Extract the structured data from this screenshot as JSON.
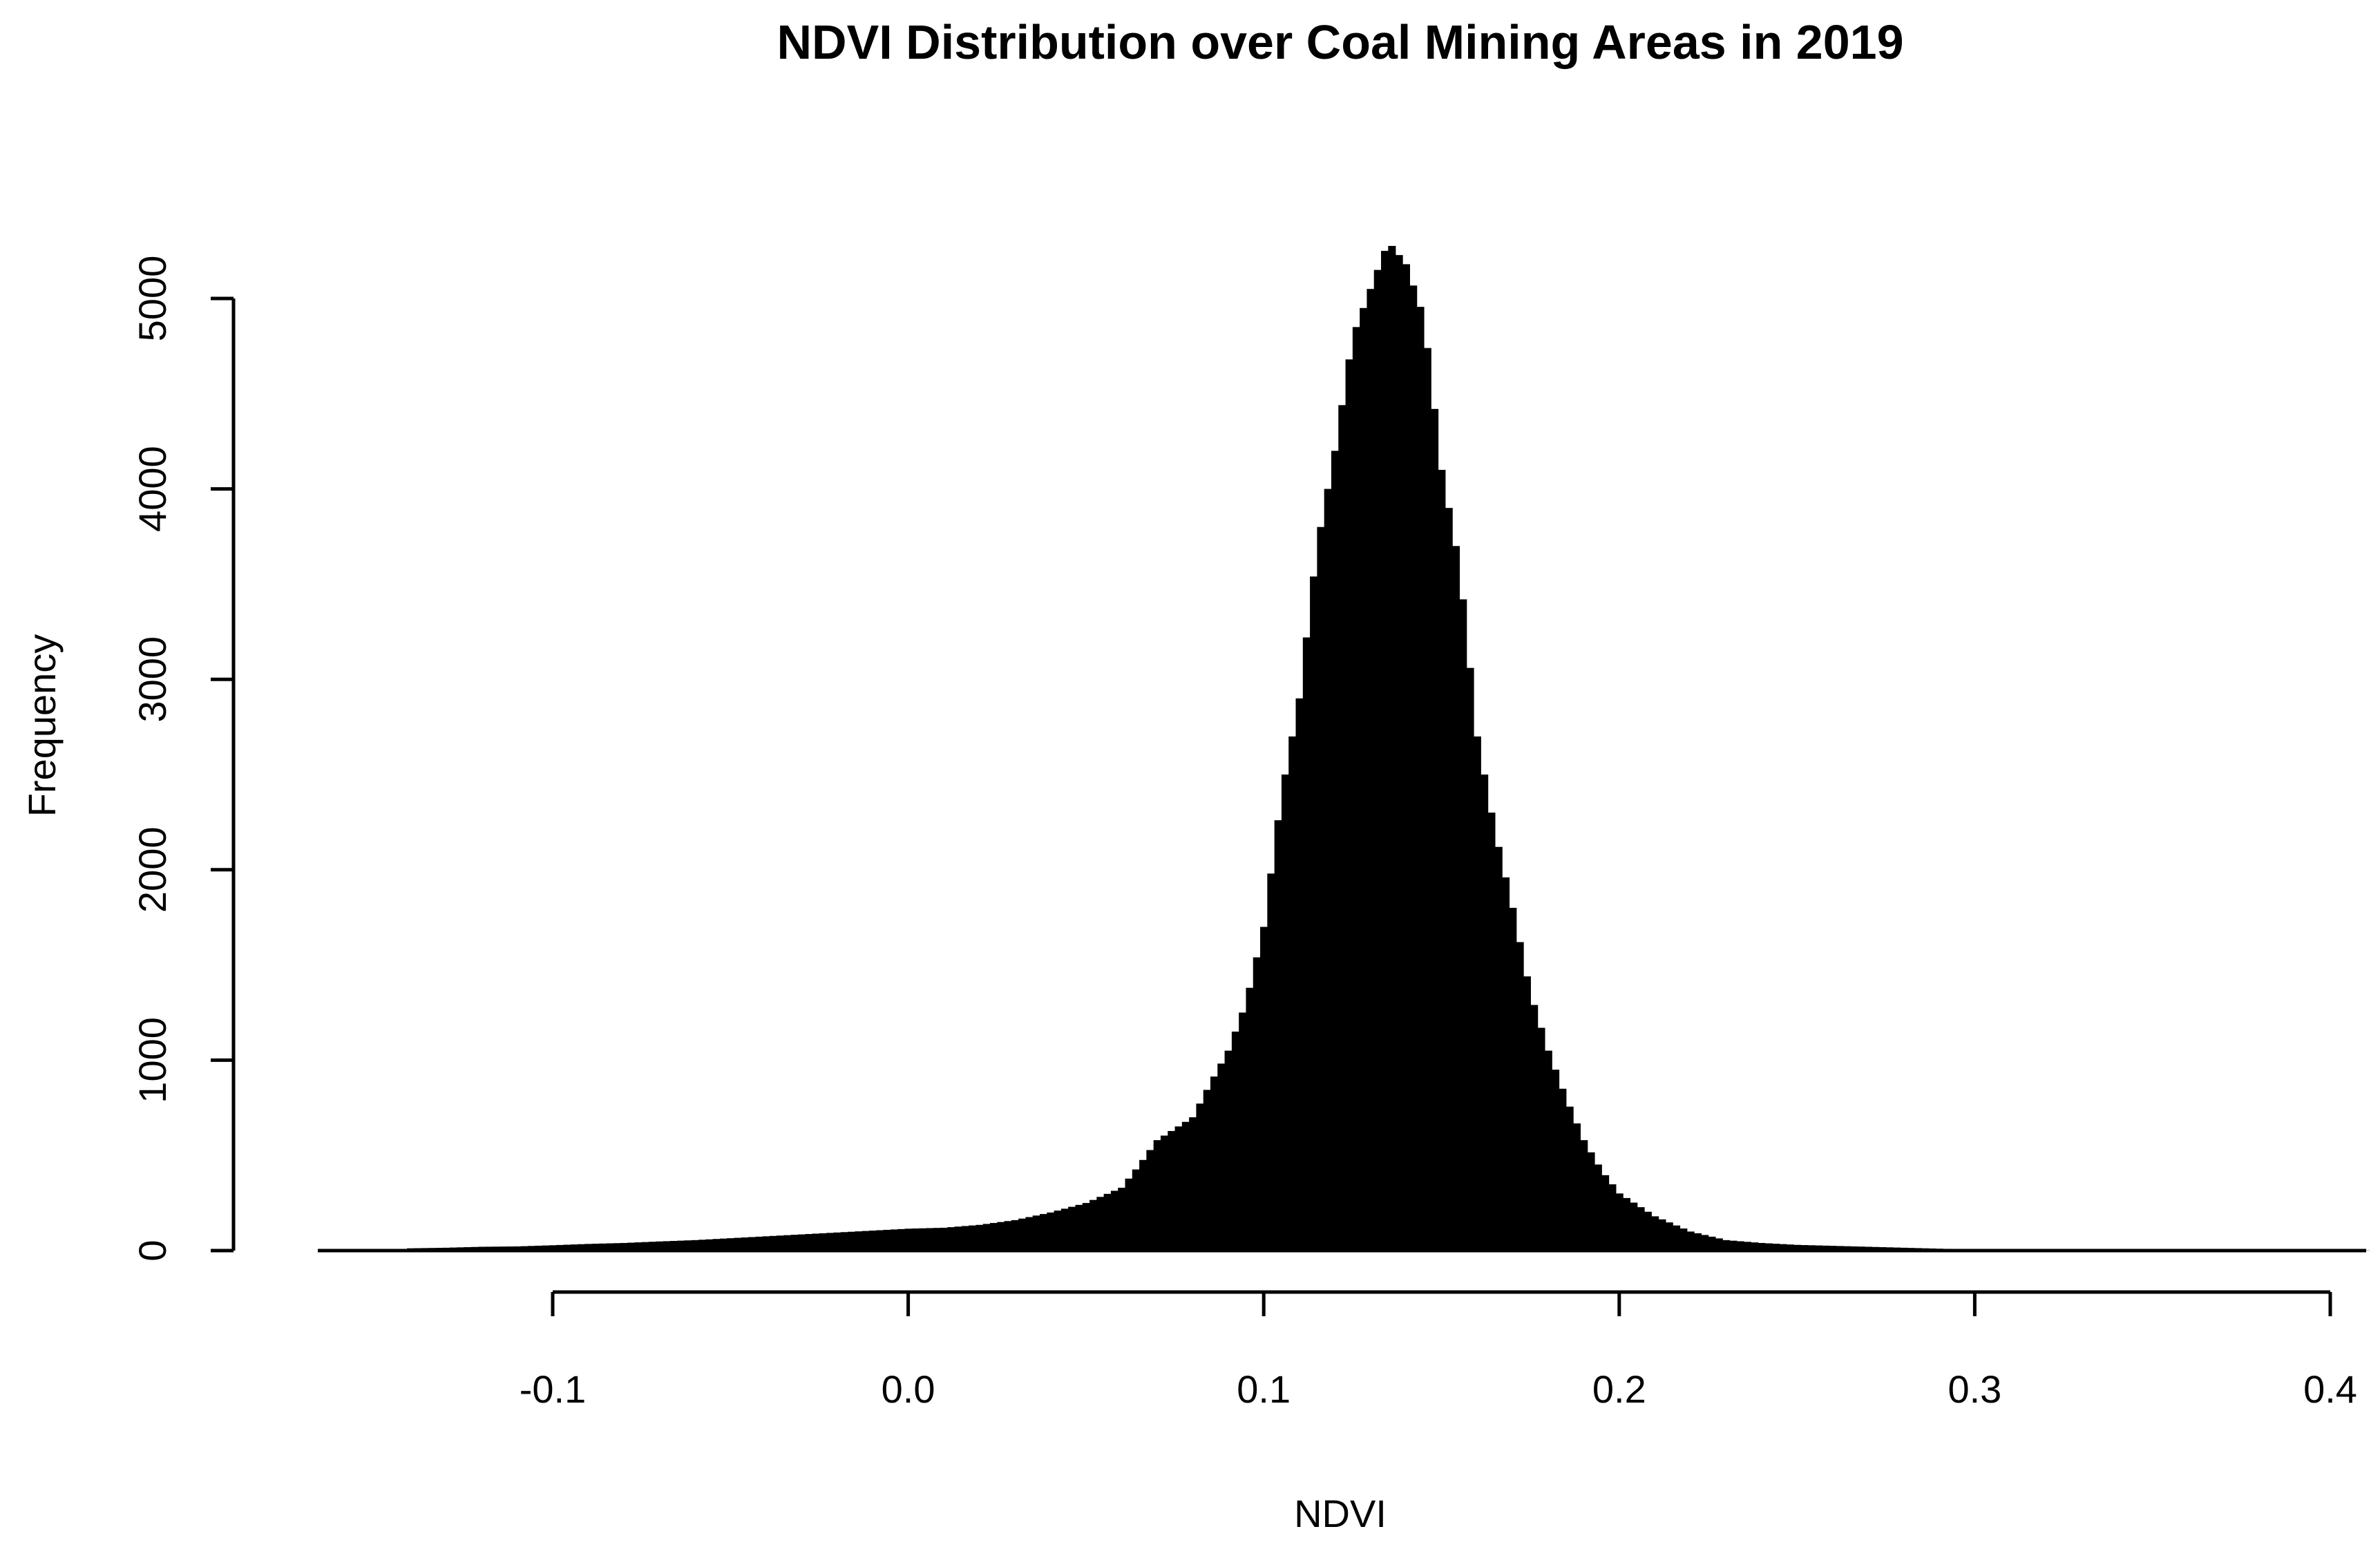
{
  "colors": {
    "bar": "#000000",
    "axis": "#000000",
    "background": "#ffffff"
  },
  "chart_data": {
    "type": "histogram",
    "title": "NDVI Distribution over Coal Mining Areas in 2019",
    "xlabel": "NDVI",
    "ylabel": "Frequency",
    "xlim": [
      -0.165,
      0.41
    ],
    "ylim": [
      0,
      5400
    ],
    "x_ticks": [
      -0.1,
      0.0,
      0.1,
      0.2,
      0.3,
      0.4
    ],
    "x_tick_labels": [
      "-0.1",
      "0.0",
      "0.1",
      "0.2",
      "0.3",
      "0.4"
    ],
    "y_ticks": [
      0,
      1000,
      2000,
      3000,
      4000,
      5000
    ],
    "y_tick_labels": [
      "0",
      "1000",
      "2000",
      "3000",
      "4000",
      "5000"
    ],
    "grid": false,
    "bin_width": 0.002,
    "bins": [
      {
        "x": -0.14,
        "y": 12
      },
      {
        "x": -0.13,
        "y": 15
      },
      {
        "x": -0.12,
        "y": 20
      },
      {
        "x": -0.11,
        "y": 22
      },
      {
        "x": -0.1,
        "y": 28
      },
      {
        "x": -0.09,
        "y": 35
      },
      {
        "x": -0.08,
        "y": 40
      },
      {
        "x": -0.07,
        "y": 48
      },
      {
        "x": -0.06,
        "y": 55
      },
      {
        "x": -0.05,
        "y": 65
      },
      {
        "x": -0.04,
        "y": 75
      },
      {
        "x": -0.03,
        "y": 85
      },
      {
        "x": -0.02,
        "y": 95
      },
      {
        "x": -0.01,
        "y": 105
      },
      {
        "x": 0.0,
        "y": 115
      },
      {
        "x": 0.01,
        "y": 120
      },
      {
        "x": 0.02,
        "y": 135
      },
      {
        "x": 0.03,
        "y": 160
      },
      {
        "x": 0.04,
        "y": 200
      },
      {
        "x": 0.05,
        "y": 250
      },
      {
        "x": 0.06,
        "y": 330
      },
      {
        "x": 0.065,
        "y": 450
      },
      {
        "x": 0.07,
        "y": 580
      },
      {
        "x": 0.075,
        "y": 640
      },
      {
        "x": 0.08,
        "y": 700
      },
      {
        "x": 0.085,
        "y": 880
      },
      {
        "x": 0.09,
        "y": 1050
      },
      {
        "x": 0.095,
        "y": 1300
      },
      {
        "x": 0.1,
        "y": 1700
      },
      {
        "x": 0.105,
        "y": 2400
      },
      {
        "x": 0.11,
        "y": 2900
      },
      {
        "x": 0.115,
        "y": 3700
      },
      {
        "x": 0.12,
        "y": 4200
      },
      {
        "x": 0.125,
        "y": 4800
      },
      {
        "x": 0.13,
        "y": 5050
      },
      {
        "x": 0.135,
        "y": 5300
      },
      {
        "x": 0.14,
        "y": 5180
      },
      {
        "x": 0.145,
        "y": 4900
      },
      {
        "x": 0.15,
        "y": 4100
      },
      {
        "x": 0.155,
        "y": 3600
      },
      {
        "x": 0.16,
        "y": 2700
      },
      {
        "x": 0.165,
        "y": 2200
      },
      {
        "x": 0.17,
        "y": 1800
      },
      {
        "x": 0.175,
        "y": 1350
      },
      {
        "x": 0.18,
        "y": 1050
      },
      {
        "x": 0.185,
        "y": 800
      },
      {
        "x": 0.19,
        "y": 580
      },
      {
        "x": 0.195,
        "y": 420
      },
      {
        "x": 0.2,
        "y": 300
      },
      {
        "x": 0.21,
        "y": 180
      },
      {
        "x": 0.22,
        "y": 100
      },
      {
        "x": 0.23,
        "y": 55
      },
      {
        "x": 0.24,
        "y": 40
      },
      {
        "x": 0.25,
        "y": 30
      },
      {
        "x": 0.26,
        "y": 25
      },
      {
        "x": 0.27,
        "y": 20
      },
      {
        "x": 0.28,
        "y": 15
      },
      {
        "x": 0.29,
        "y": 10
      },
      {
        "x": 0.3,
        "y": 6
      },
      {
        "x": 0.32,
        "y": 4
      },
      {
        "x": 0.35,
        "y": 2
      },
      {
        "x": 0.4,
        "y": 1
      }
    ]
  }
}
